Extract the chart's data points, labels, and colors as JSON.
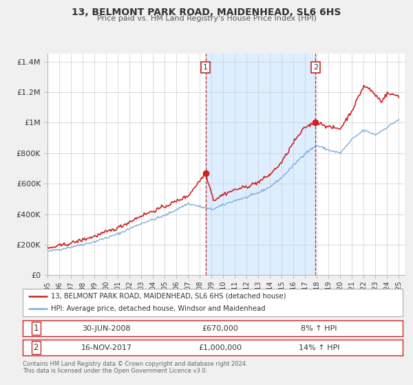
{
  "title": "13, BELMONT PARK ROAD, MAIDENHEAD, SL6 6HS",
  "subtitle": "Price paid vs. HM Land Registry's House Price Index (HPI)",
  "legend_line1": "13, BELMONT PARK ROAD, MAIDENHEAD, SL6 6HS (detached house)",
  "legend_line2": "HPI: Average price, detached house, Windsor and Maidenhead",
  "footnote1": "Contains HM Land Registry data © Crown copyright and database right 2024.",
  "footnote2": "This data is licensed under the Open Government Licence v3.0.",
  "sale1_label": "1",
  "sale1_date": "30-JUN-2008",
  "sale1_price": "£670,000",
  "sale1_hpi": "8% ↑ HPI",
  "sale2_label": "2",
  "sale2_date": "16-NOV-2017",
  "sale2_price": "£1,000,000",
  "sale2_hpi": "14% ↑ HPI",
  "sale1_x": 2008.5,
  "sale1_y": 670000,
  "sale2_x": 2017.88,
  "sale2_y": 1000000,
  "vline1_x": 2008.5,
  "vline2_x": 2017.88,
  "hpi_color": "#7aaddc",
  "price_color": "#cc2222",
  "dot_color": "#cc2222",
  "shade_color": "#ddeeff",
  "background_color": "#f0f0f0",
  "plot_bg_color": "#ffffff",
  "ylim_min": 0,
  "ylim_max": 1450000,
  "xlim_min": 1995.0,
  "xlim_max": 2025.5,
  "yticks": [
    0,
    200000,
    400000,
    600000,
    800000,
    1000000,
    1200000,
    1400000
  ],
  "ytick_labels": [
    "£0",
    "£200K",
    "£400K",
    "£600K",
    "£800K",
    "£1M",
    "£1.2M",
    "£1.4M"
  ],
  "xticks": [
    1995,
    1996,
    1997,
    1998,
    1999,
    2000,
    2001,
    2002,
    2003,
    2004,
    2005,
    2006,
    2007,
    2008,
    2009,
    2010,
    2011,
    2012,
    2013,
    2014,
    2015,
    2016,
    2017,
    2018,
    2019,
    2020,
    2021,
    2022,
    2023,
    2024,
    2025
  ],
  "hpi_anchors_x": [
    1995,
    1997,
    1999,
    2001,
    2003,
    2005,
    2007,
    2008,
    2009,
    2010,
    2011,
    2012,
    2013,
    2014,
    2015,
    2016,
    2017,
    2018,
    2019,
    2020,
    2021,
    2022,
    2023,
    2024,
    2025
  ],
  "hpi_anchors_y": [
    155000,
    185000,
    220000,
    270000,
    340000,
    390000,
    470000,
    450000,
    430000,
    460000,
    490000,
    510000,
    540000,
    580000,
    640000,
    720000,
    800000,
    850000,
    820000,
    800000,
    890000,
    950000,
    920000,
    970000,
    1020000
  ],
  "price_anchors_x": [
    1995,
    1997,
    1999,
    2001,
    2003,
    2005,
    2007,
    2008.5,
    2009.2,
    2010,
    2011,
    2012,
    2013,
    2014,
    2015,
    2016,
    2017,
    2017.88,
    2018.5,
    2019,
    2020,
    2021,
    2022,
    2022.5,
    2023,
    2023.5,
    2024,
    2025
  ],
  "price_anchors_y": [
    175000,
    210000,
    255000,
    310000,
    390000,
    450000,
    520000,
    670000,
    490000,
    530000,
    560000,
    580000,
    610000,
    660000,
    740000,
    870000,
    970000,
    1000000,
    990000,
    970000,
    960000,
    1080000,
    1240000,
    1220000,
    1180000,
    1140000,
    1190000,
    1175000
  ]
}
